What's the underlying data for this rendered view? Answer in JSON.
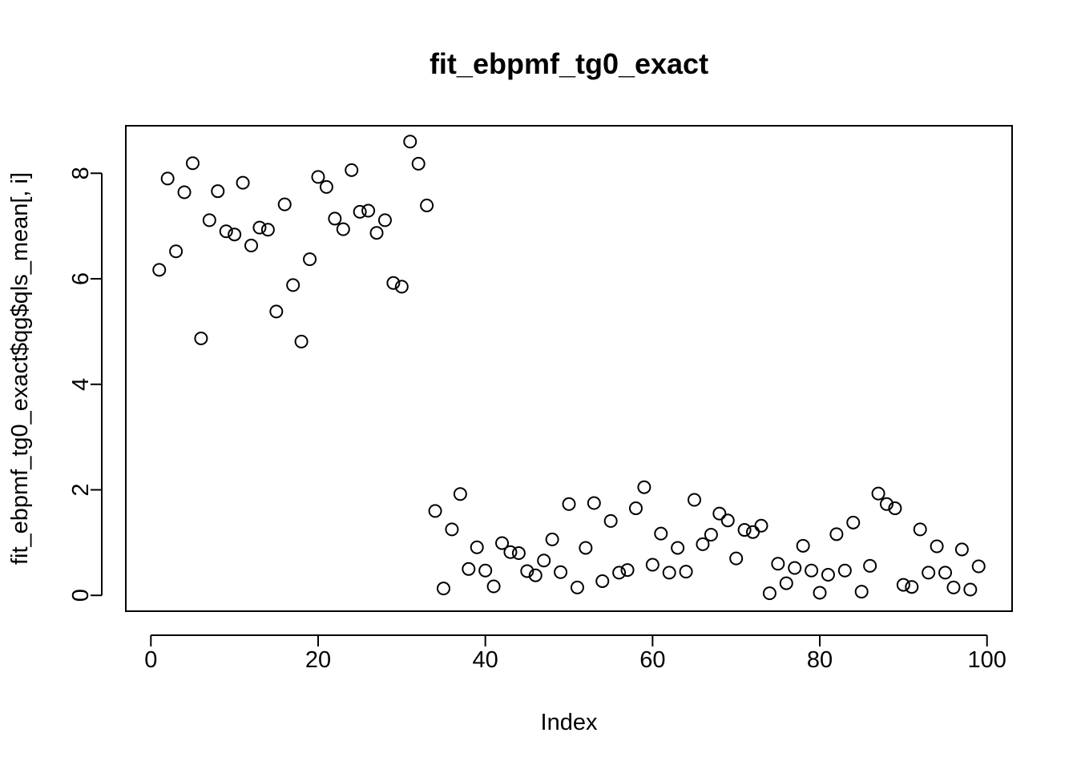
{
  "chart_data": {
    "type": "scatter",
    "title": "fit_ebpmf_tg0_exact",
    "xlabel": "Index",
    "ylabel": "fit_ebpmf_tg0_exact$qg$qls_mean[, i]",
    "xlim": [
      -3,
      103
    ],
    "ylim": [
      -0.3,
      8.9
    ],
    "xticks": [
      0,
      20,
      40,
      60,
      80,
      100
    ],
    "yticks": [
      0,
      2,
      4,
      6,
      8
    ],
    "grid": false,
    "legend": "none",
    "x": [
      1,
      2,
      3,
      4,
      5,
      6,
      7,
      8,
      9,
      10,
      11,
      12,
      13,
      14,
      15,
      16,
      17,
      18,
      19,
      20,
      21,
      22,
      23,
      24,
      25,
      26,
      27,
      28,
      29,
      30,
      31,
      32,
      33,
      34,
      35,
      36,
      37,
      38,
      39,
      40,
      41,
      42,
      43,
      44,
      45,
      46,
      47,
      48,
      49,
      50,
      51,
      52,
      53,
      54,
      55,
      56,
      57,
      58,
      59,
      60,
      61,
      62,
      63,
      64,
      65,
      66,
      67,
      68,
      69,
      70,
      71,
      72,
      73,
      74,
      75,
      76,
      77,
      78,
      79,
      80,
      81,
      82,
      83,
      84,
      85,
      86,
      87,
      88,
      89,
      90,
      91,
      92,
      93,
      94,
      95,
      96,
      97,
      98,
      99
    ],
    "y": [
      6.17,
      7.9,
      6.52,
      7.64,
      8.19,
      4.87,
      7.11,
      7.66,
      6.9,
      6.84,
      7.82,
      6.63,
      6.97,
      6.93,
      5.38,
      7.41,
      5.88,
      4.81,
      6.37,
      7.93,
      7.74,
      7.14,
      6.94,
      8.06,
      7.27,
      7.29,
      6.87,
      7.11,
      5.92,
      5.85,
      8.6,
      8.18,
      7.39,
      1.6,
      0.13,
      1.25,
      1.92,
      0.5,
      0.91,
      0.47,
      0.17,
      0.99,
      0.82,
      0.8,
      0.46,
      0.38,
      0.66,
      1.06,
      0.44,
      1.73,
      0.15,
      0.9,
      1.75,
      0.27,
      1.41,
      0.43,
      0.48,
      1.65,
      2.05,
      0.58,
      1.17,
      0.43,
      0.9,
      0.45,
      1.81,
      0.97,
      1.15,
      1.55,
      1.42,
      0.7,
      1.24,
      1.2,
      1.32,
      0.04,
      0.6,
      0.23,
      0.52,
      0.94,
      0.47,
      0.05,
      0.39,
      1.16,
      0.47,
      1.38,
      0.07,
      0.56,
      1.93,
      1.73,
      1.65,
      0.2,
      0.16,
      1.25,
      0.43,
      0.93,
      0.43,
      0.15,
      0.87,
      0.11,
      0.55
    ]
  }
}
